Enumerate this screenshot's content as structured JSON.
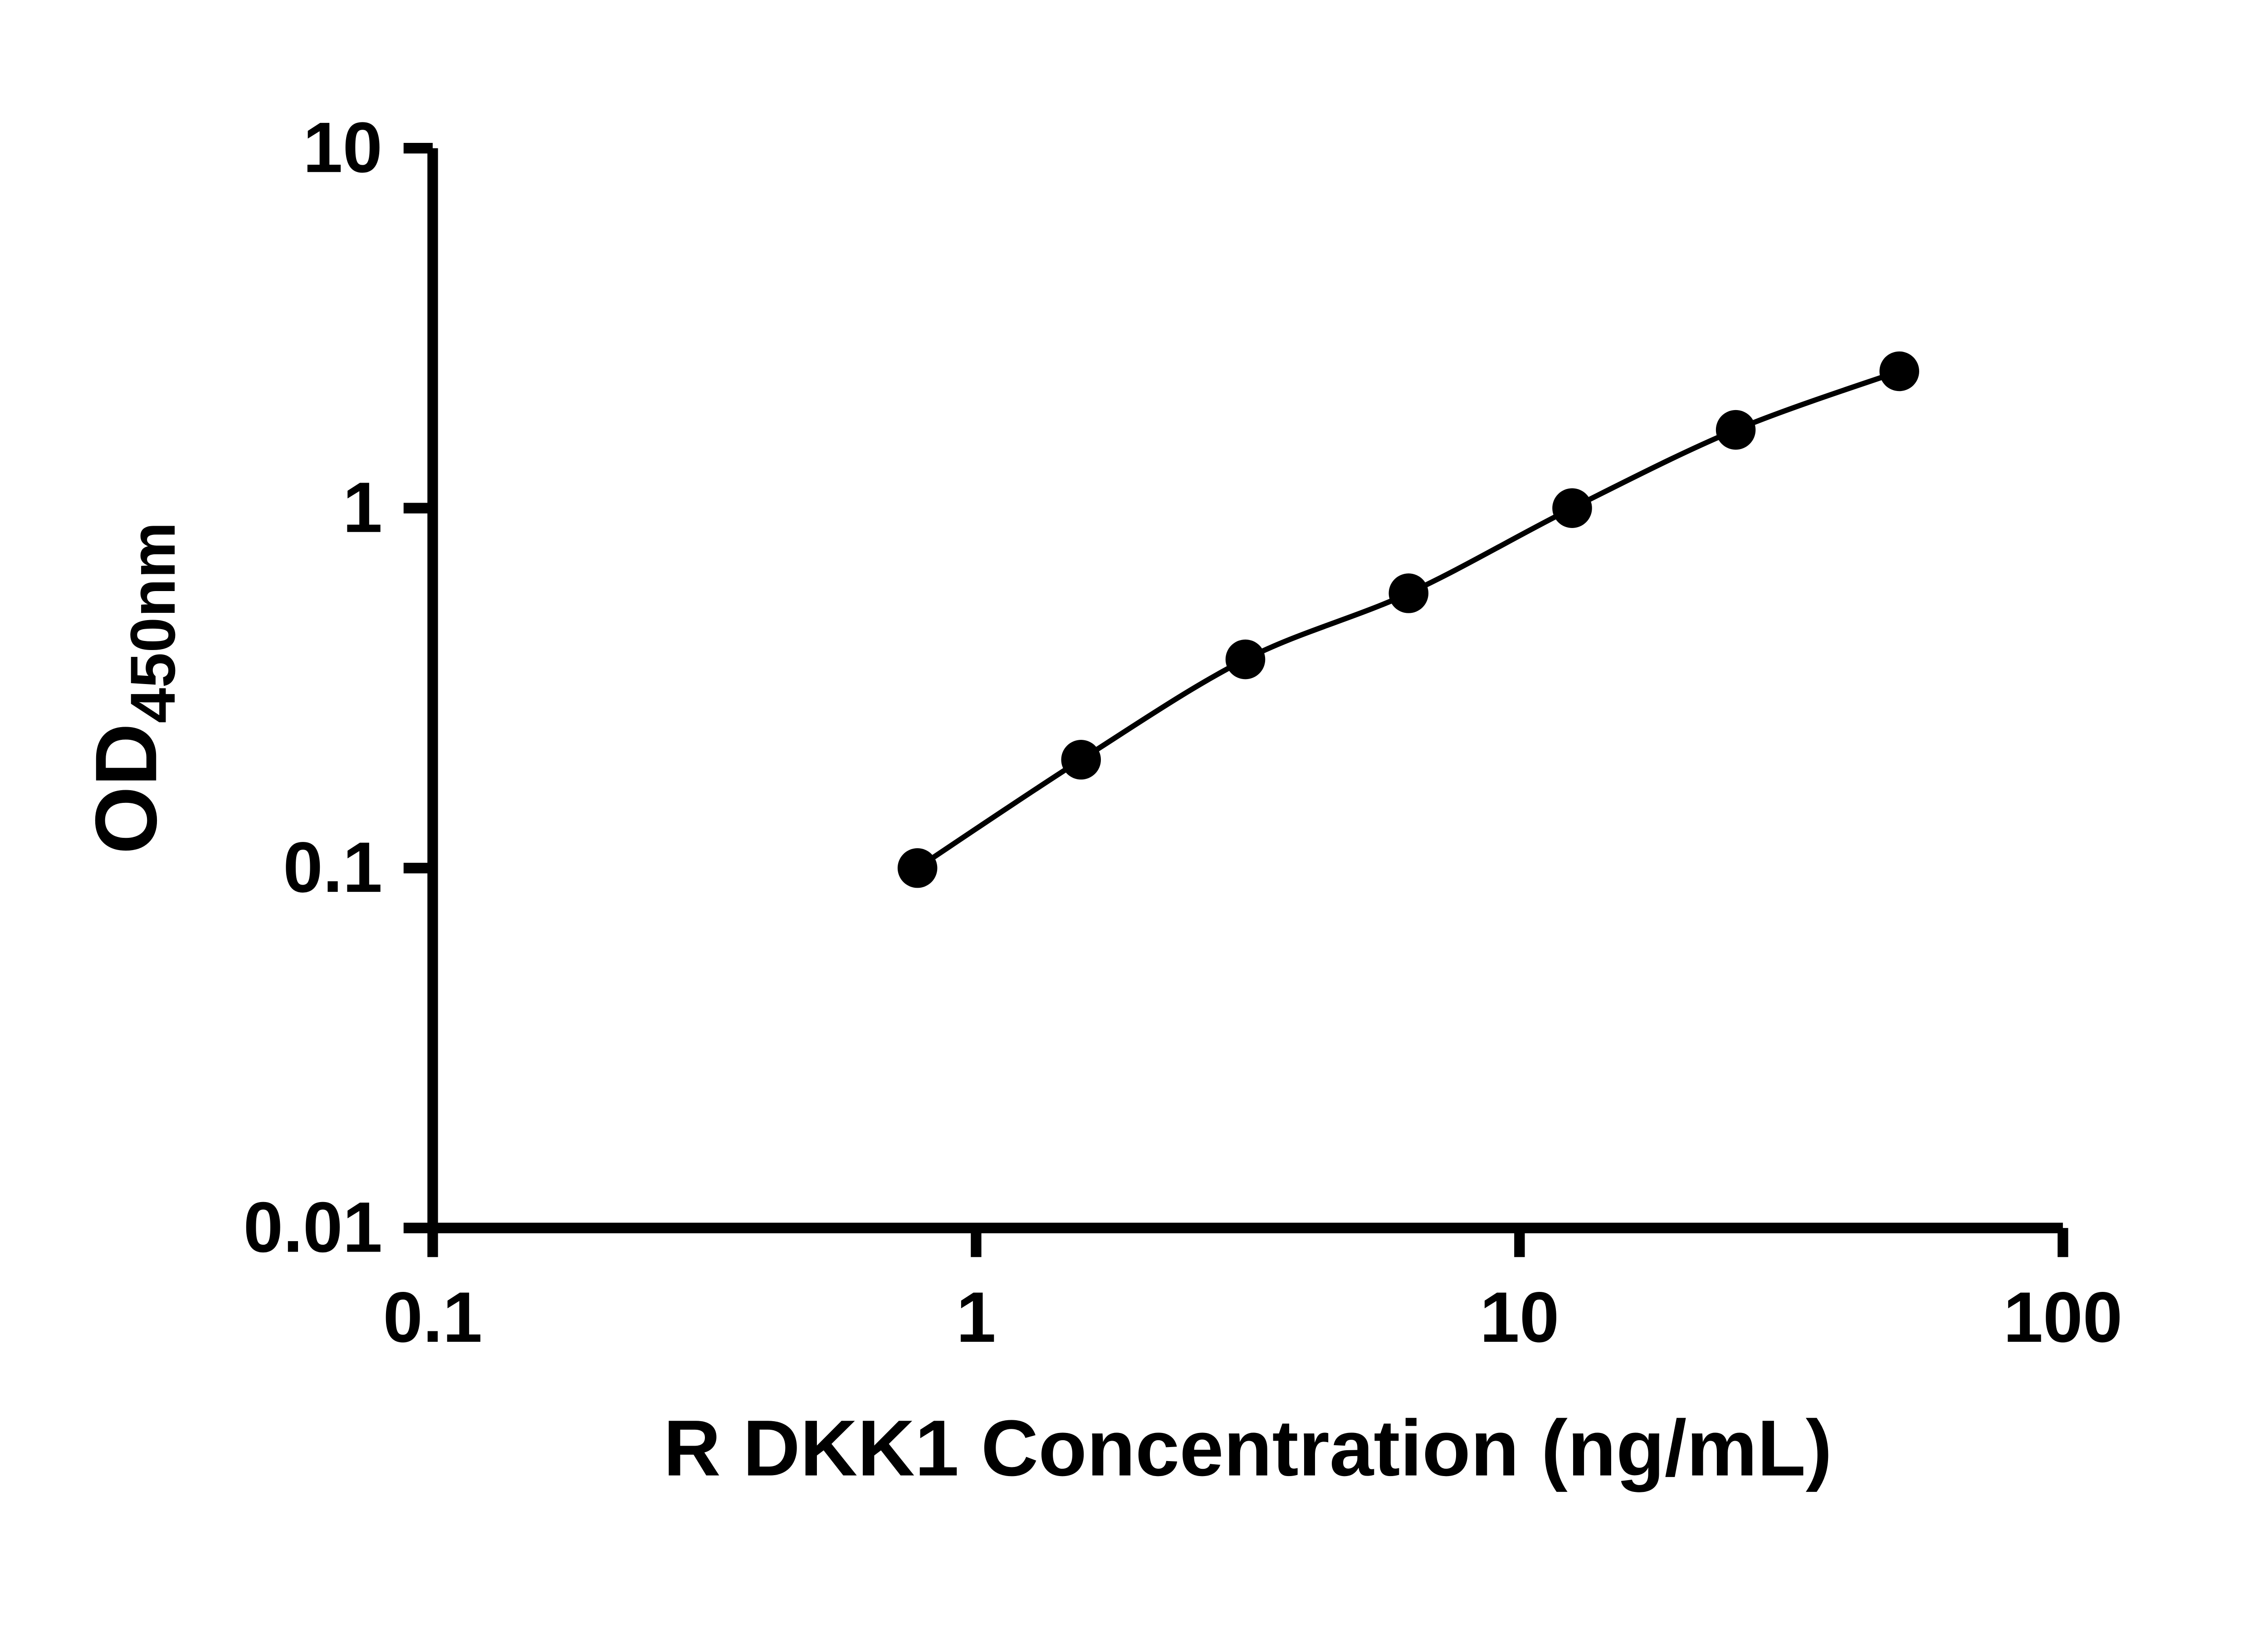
{
  "chart_data": {
    "type": "scatter",
    "subtype": "log-log standard curve with connecting smooth line",
    "title": "",
    "xlabel": "R DKK1 Concentration (ng/mL)",
    "ylabel_main": "OD",
    "ylabel_sub": "450nm",
    "x": [
      0.78,
      1.56,
      3.13,
      6.25,
      12.5,
      25,
      50
    ],
    "y": [
      0.1,
      0.2,
      0.38,
      0.58,
      1.0,
      1.65,
      2.4
    ],
    "xlim": [
      0.1,
      100
    ],
    "ylim": [
      0.01,
      10
    ],
    "x_scale": "log",
    "y_scale": "log",
    "x_ticks": [
      0.1,
      1,
      10,
      100
    ],
    "x_tick_labels": [
      "0.1",
      "1",
      "10",
      "100"
    ],
    "y_ticks": [
      0.01,
      0.1,
      1,
      10
    ],
    "y_tick_labels": [
      "0.01",
      "0.1",
      "1",
      "10"
    ],
    "grid": false,
    "legend": null,
    "marker": "filled-circle",
    "marker_color": "#000000",
    "line_color": "#000000",
    "axis_color": "#000000",
    "background": "#ffffff"
  }
}
